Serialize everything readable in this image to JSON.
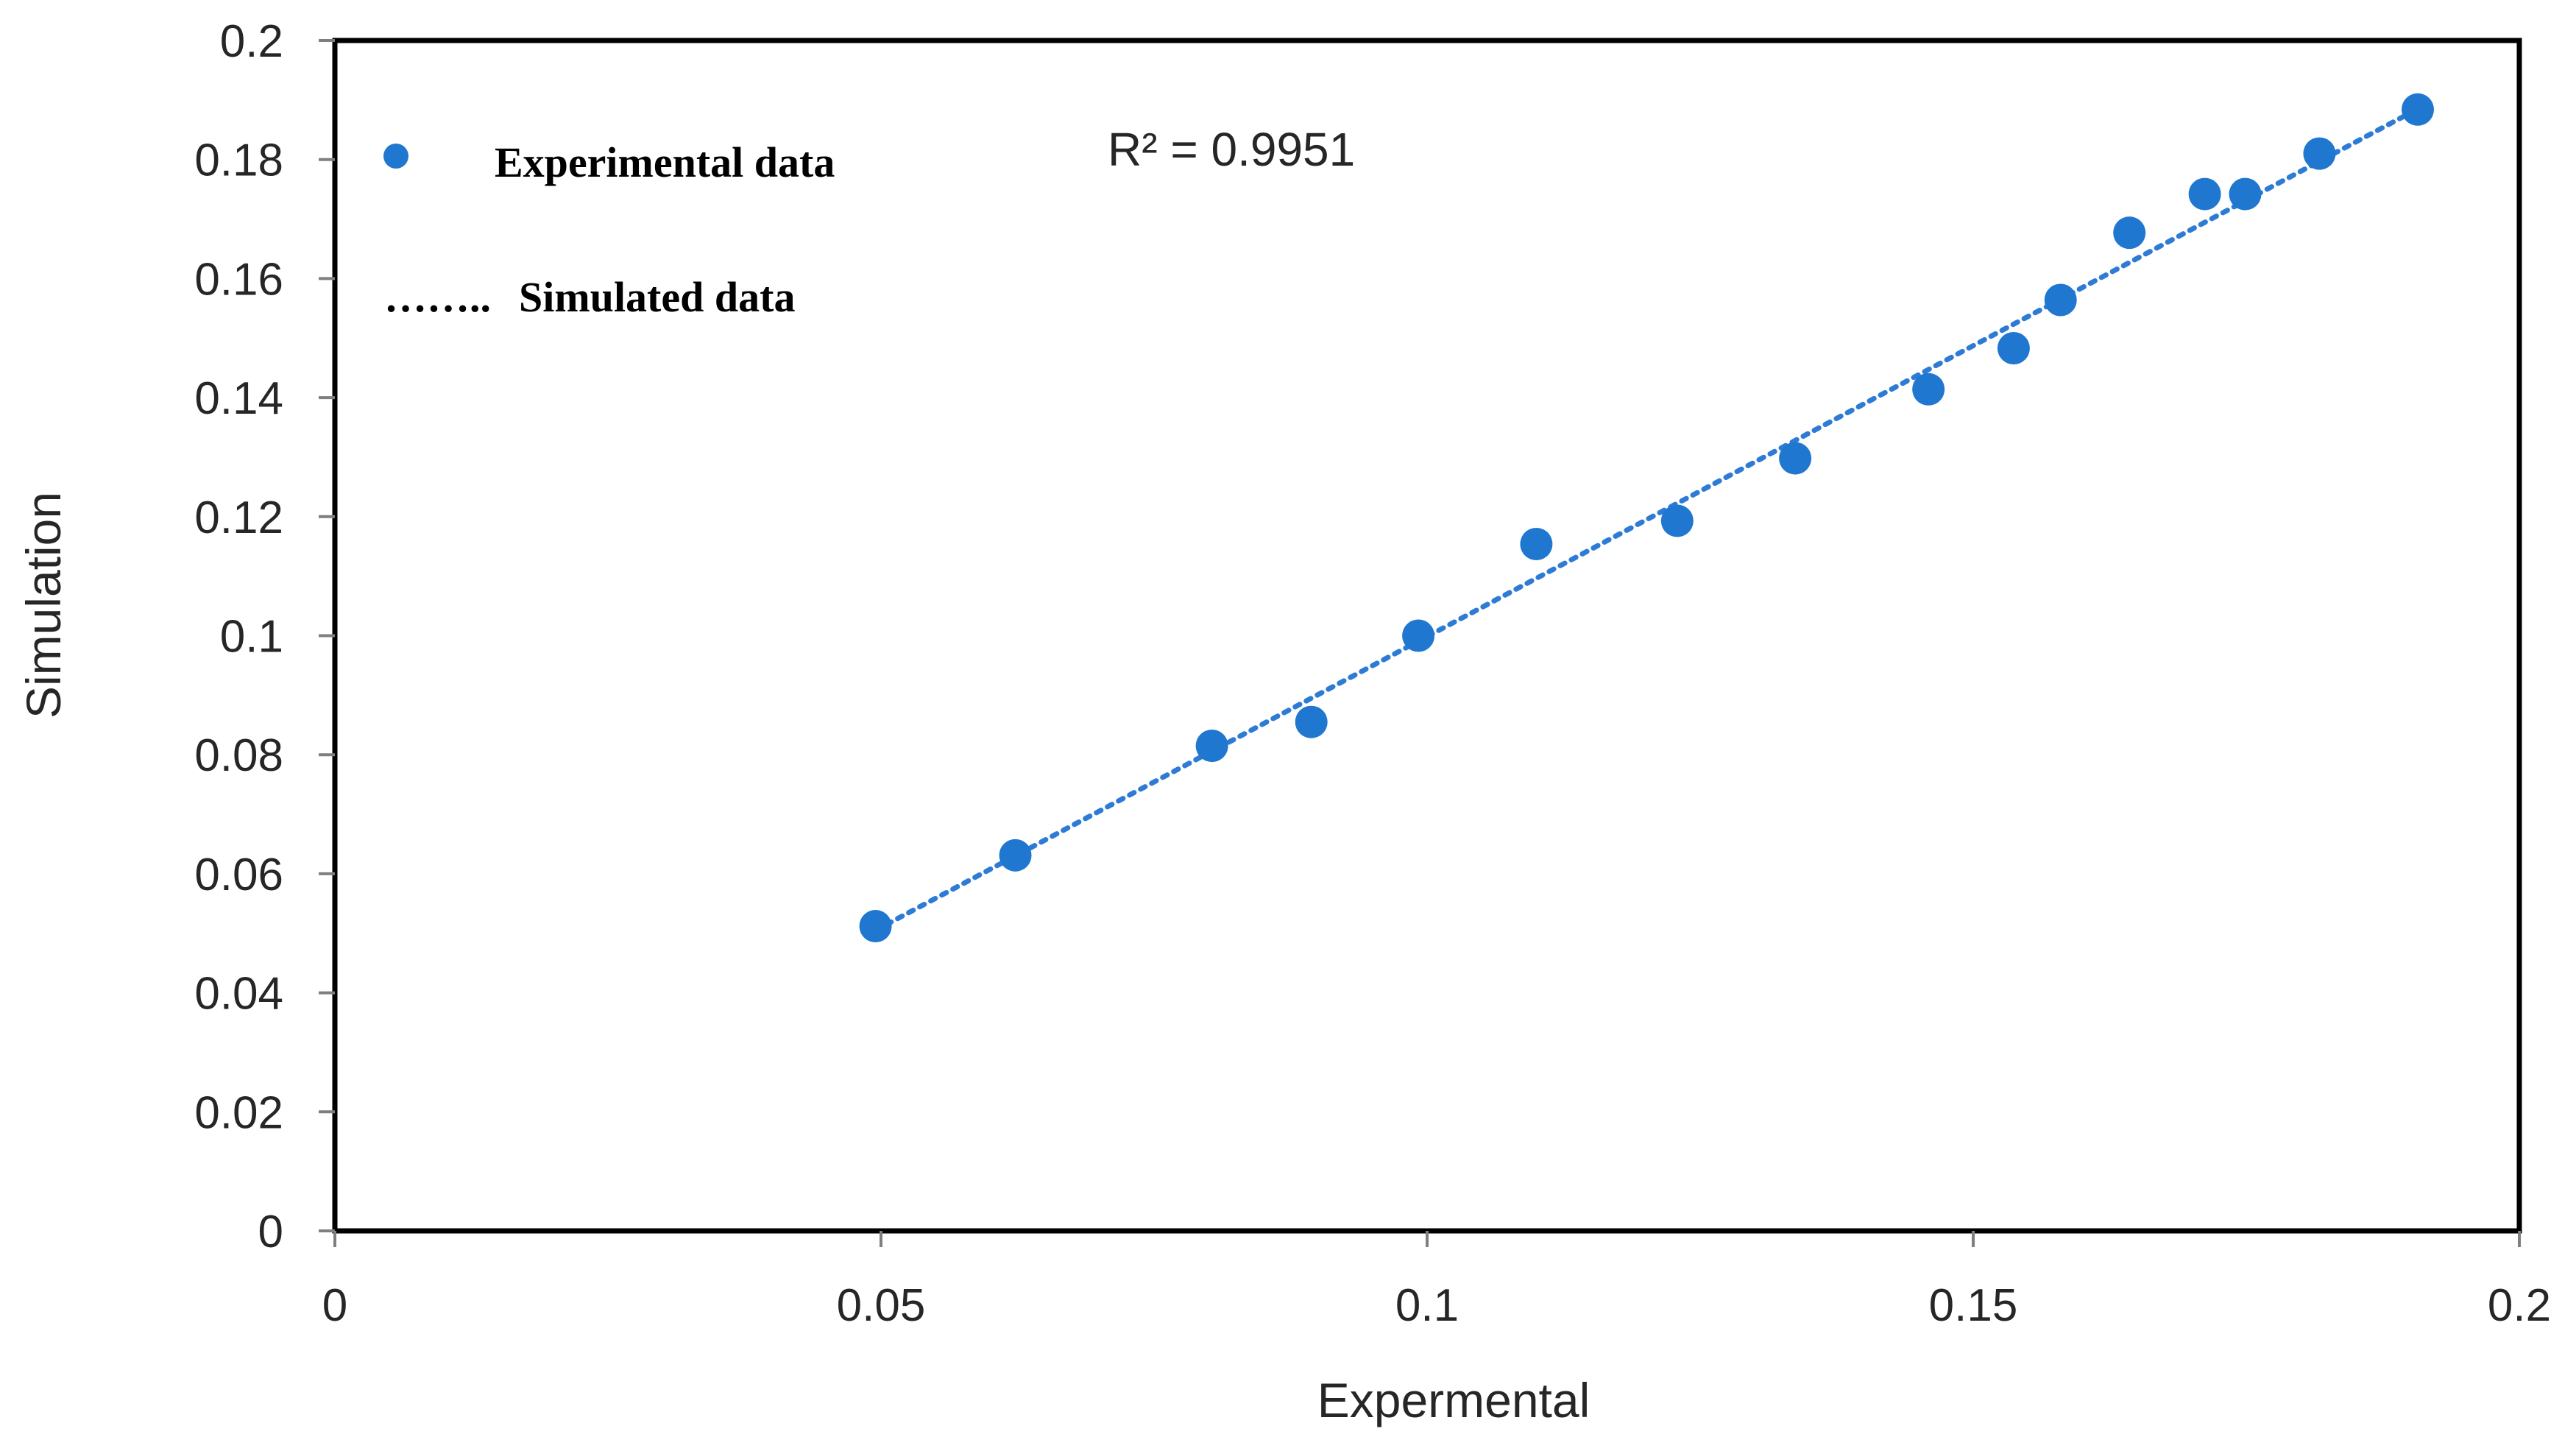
{
  "colors": {
    "series": "#1f77d0",
    "trendline": "#2e7bd6",
    "axis": "#000000",
    "tick": "#7f7f7f",
    "text": "#262626"
  },
  "chart_data": {
    "type": "scatter",
    "title": "",
    "xlabel": "Expermental",
    "ylabel": "Simulation",
    "xlim": [
      0,
      0.2
    ],
    "ylim": [
      0,
      0.2
    ],
    "x_ticks": [
      0,
      0.05,
      0.1,
      0.15,
      0.2
    ],
    "x_tick_labels": [
      "0",
      "0.05",
      "0.1",
      "0.15",
      "0.2"
    ],
    "y_ticks": [
      0,
      0.02,
      0.04,
      0.06,
      0.08,
      0.1,
      0.12,
      0.14,
      0.16,
      0.18,
      0.2
    ],
    "y_tick_labels": [
      "0",
      "0.02",
      "0.04",
      "0.06",
      "0.08",
      "0.1",
      "0.12",
      "0.14",
      "0.16",
      "0.18",
      "0.2"
    ],
    "grid": false,
    "legend_position": "top-left",
    "series": [
      {
        "name": "Experimental data",
        "marker": "circle",
        "x": [
          0.0495,
          0.0623,
          0.0803,
          0.0894,
          0.0992,
          0.11,
          0.1229,
          0.1337,
          0.1459,
          0.1537,
          0.158,
          0.1643,
          0.1712,
          0.1749,
          0.1817,
          0.1907
        ],
        "y": [
          0.0512,
          0.0631,
          0.0815,
          0.0855,
          0.1,
          0.1154,
          0.1193,
          0.1298,
          0.1414,
          0.1483,
          0.1564,
          0.1677,
          0.1742,
          0.1742,
          0.181,
          0.1884
        ]
      },
      {
        "name": "Simulated data",
        "line_style": "dotted",
        "x": [
          0.0495,
          0.1907
        ],
        "y": [
          0.0505,
          0.1885
        ]
      }
    ],
    "annotations": [
      "R² = 0.9951"
    ],
    "legend_entries": [
      {
        "marker_text": "",
        "label": "Experimental data"
      },
      {
        "marker_text": "……..",
        "label": "Simulated data"
      }
    ]
  }
}
